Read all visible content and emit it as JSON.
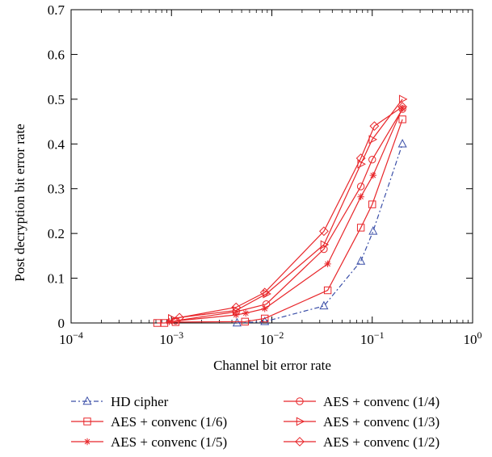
{
  "chart_data": {
    "type": "line",
    "xscale": "log",
    "xlim": [
      0.0001,
      1
    ],
    "ylim": [
      0,
      0.7
    ],
    "xlabel": "Channel bit error rate",
    "ylabel": "Post decryption bit error rate",
    "xticks": [
      {
        "value": 0.0001,
        "base": "10",
        "exp": "−4"
      },
      {
        "value": 0.001,
        "base": "10",
        "exp": "−3"
      },
      {
        "value": 0.01,
        "base": "10",
        "exp": "−2"
      },
      {
        "value": 0.1,
        "base": "10",
        "exp": "−1"
      },
      {
        "value": 1,
        "base": "10",
        "exp": "0"
      }
    ],
    "yticks": [
      "0",
      "0.1",
      "0.2",
      "0.3",
      "0.4",
      "0.5",
      "0.6",
      "0.7"
    ],
    "legend_position": "below",
    "series": [
      {
        "name": "HD cipher",
        "color": "#3b4fa8",
        "dash": "6,3,2,3",
        "marker": "triangle-up",
        "points": [
          [
            0.0045,
            0
          ],
          [
            0.0085,
            0.003
          ],
          [
            0.033,
            0.038
          ],
          [
            0.077,
            0.138
          ],
          [
            0.102,
            0.205
          ],
          [
            0.2,
            0.4
          ]
        ]
      },
      {
        "name": "AES + convenc (1/6)",
        "color": "#e8262a",
        "dash": "",
        "marker": "square",
        "points": [
          [
            0.00072,
            0
          ],
          [
            0.00085,
            0
          ],
          [
            0.0011,
            0.002
          ],
          [
            0.0054,
            0.003
          ],
          [
            0.0085,
            0.01
          ],
          [
            0.036,
            0.073
          ],
          [
            0.077,
            0.213
          ],
          [
            0.1,
            0.265
          ],
          [
            0.2,
            0.455
          ]
        ]
      },
      {
        "name": "AES + convenc (1/5)",
        "color": "#e8262a",
        "dash": "",
        "marker": "star",
        "points": [
          [
            0.00095,
            0.003
          ],
          [
            0.0044,
            0.018
          ],
          [
            0.0055,
            0.022
          ],
          [
            0.0085,
            0.032
          ],
          [
            0.036,
            0.132
          ],
          [
            0.077,
            0.282
          ],
          [
            0.102,
            0.33
          ],
          [
            0.2,
            0.48
          ]
        ]
      },
      {
        "name": "AES + convenc (1/4)",
        "color": "#e8262a",
        "dash": "",
        "marker": "circle",
        "points": [
          [
            0.0011,
            0.005
          ],
          [
            0.0044,
            0.025
          ],
          [
            0.0088,
            0.042
          ],
          [
            0.033,
            0.165
          ],
          [
            0.077,
            0.305
          ],
          [
            0.1,
            0.365
          ],
          [
            0.2,
            0.478
          ]
        ]
      },
      {
        "name": "AES + convenc (1/3)",
        "color": "#e8262a",
        "dash": "",
        "marker": "triangle-right",
        "points": [
          [
            0.001,
            0.01
          ],
          [
            0.0044,
            0.028
          ],
          [
            0.0088,
            0.065
          ],
          [
            0.033,
            0.175
          ],
          [
            0.077,
            0.355
          ],
          [
            0.1,
            0.41
          ],
          [
            0.2,
            0.5
          ]
        ]
      },
      {
        "name": "AES + convenc (1/2)",
        "color": "#e8262a",
        "dash": "",
        "marker": "diamond",
        "points": [
          [
            0.0012,
            0.012
          ],
          [
            0.0044,
            0.035
          ],
          [
            0.0085,
            0.068
          ],
          [
            0.033,
            0.205
          ],
          [
            0.077,
            0.368
          ],
          [
            0.105,
            0.44
          ],
          [
            0.2,
            0.483
          ]
        ]
      }
    ]
  }
}
